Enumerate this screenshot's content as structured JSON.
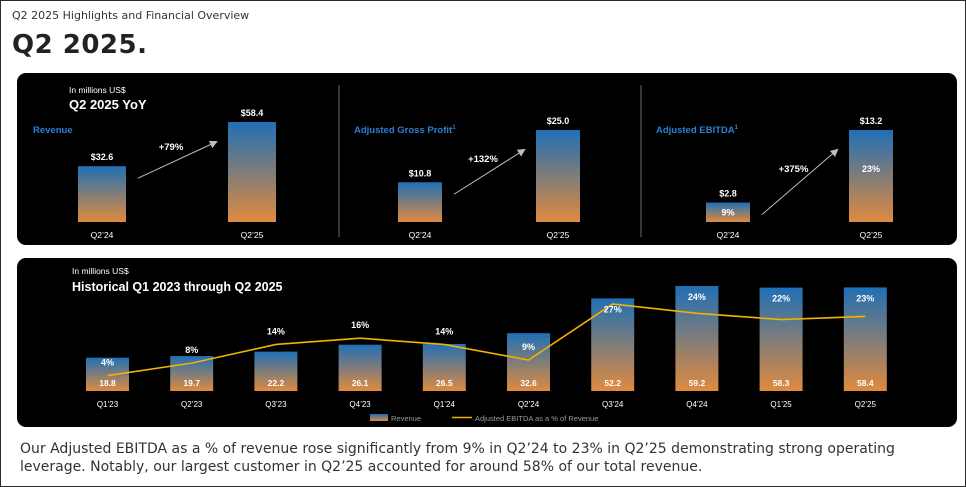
{
  "header": {
    "kicker": "Q2 2025 Highlights and Financial Overview",
    "title": "Q2 2025."
  },
  "yoy": {
    "units": "In millions US$",
    "title": "Q2 2025 YoY"
  },
  "history": {
    "units": "In millions US$",
    "title": "Historical Q1 2023 through Q2 2025"
  },
  "caption": "Our Adjusted EBITDA as a % of revenue rose significantly from 9% in Q2’24 to 23% in Q2’25 demonstrating strong operating leverage. Notably, our largest customer in Q2’25 accounted for around 58% of our total revenue.",
  "colors": {
    "bar_top": "#1f6fb5",
    "bar_bottom": "#e08a3e",
    "line": "#f2b200",
    "label_blue": "#2a7fd4"
  },
  "chart_data": [
    {
      "type": "bar",
      "title": "Revenue",
      "superscript": "",
      "categories": [
        "Q2’24",
        "Q2’25"
      ],
      "values": [
        32.6,
        58.4
      ],
      "value_labels": [
        "$32.6",
        "$58.4"
      ],
      "inner_labels": [
        "",
        ""
      ],
      "change": "+79%",
      "ylim": [
        0,
        60
      ]
    },
    {
      "type": "bar",
      "title": "Adjusted Gross Profit",
      "superscript": "1",
      "categories": [
        "Q2’24",
        "Q2’25"
      ],
      "values": [
        10.8,
        25.0
      ],
      "value_labels": [
        "$10.8",
        "$25.0"
      ],
      "inner_labels": [
        "",
        ""
      ],
      "change": "+132%",
      "ylim": [
        0,
        26
      ]
    },
    {
      "type": "bar",
      "title": "Adjusted EBITDA",
      "superscript": "1",
      "categories": [
        "Q2’24",
        "Q2’25"
      ],
      "values": [
        2.8,
        13.2
      ],
      "value_labels": [
        "$2.8",
        "$13.2"
      ],
      "inner_labels": [
        "9%",
        "23%"
      ],
      "change": "+375%",
      "ylim": [
        0,
        14
      ]
    },
    {
      "type": "bar",
      "categories": [
        "Q1’23",
        "Q2’23",
        "Q3’23",
        "Q4’23",
        "Q1’24",
        "Q2’24",
        "Q3’24",
        "Q4’24",
        "Q1’25",
        "Q2’25"
      ],
      "series": [
        {
          "name": "Revenue",
          "type": "bar",
          "values": [
            18.8,
            19.7,
            22.2,
            26.1,
            26.5,
            32.6,
            52.2,
            59.2,
            58.3,
            58.4
          ]
        },
        {
          "name": "Adjusted EBITDA as a % of Revenue",
          "type": "line",
          "values": [
            4,
            8,
            14,
            16,
            14,
            9,
            27,
            24,
            22,
            23
          ]
        }
      ],
      "bar_labels": [
        "18.8",
        "19.7",
        "22.2",
        "26.1",
        "26.5",
        "32.6",
        "52.2",
        "59.2",
        "58.3",
        "58.4"
      ],
      "line_labels": [
        "4%",
        "8%",
        "14%",
        "16%",
        "14%",
        "9%",
        "27%",
        "24%",
        "22%",
        "23%"
      ],
      "legend": {
        "position": "bottom-center",
        "entries": [
          "Revenue",
          "Adjusted EBITDA as a % of Revenue"
        ]
      },
      "bar_ylim": [
        0,
        60
      ],
      "line_ylim": [
        0,
        30
      ]
    }
  ]
}
